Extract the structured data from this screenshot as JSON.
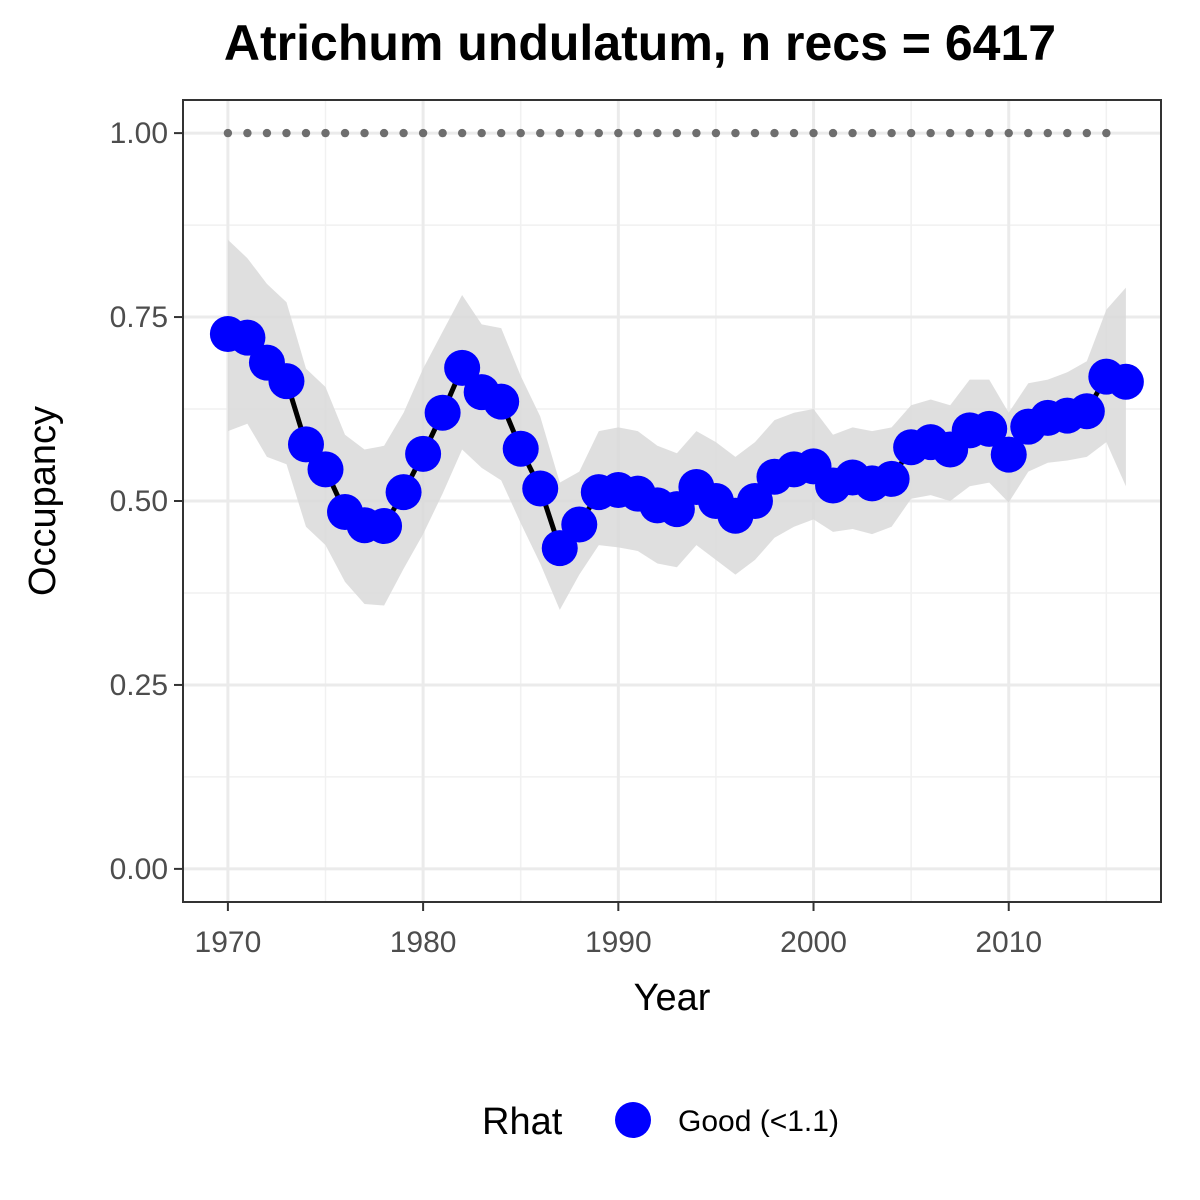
{
  "chart_data": {
    "type": "line",
    "title": "Atrichum undulatum, n recs = 6417",
    "xlabel": "Year",
    "ylabel": "Occupancy",
    "xlim": [
      1967.7,
      2017.8
    ],
    "ylim": [
      -0.045,
      1.045
    ],
    "x_ticks": [
      1970,
      1980,
      1990,
      2000,
      2010
    ],
    "x_tick_labels": [
      "1970",
      "1980",
      "1990",
      "2000",
      "2010"
    ],
    "y_ticks": [
      0,
      0.25,
      0.5,
      0.75,
      1.0
    ],
    "y_tick_labels": [
      "0.00",
      "0.25",
      "0.50",
      "0.75",
      "1.00"
    ],
    "grid": true,
    "legend": {
      "title": "Rhat",
      "position": "bottom",
      "entries": [
        {
          "label": "Good (<1.1)",
          "color": "#0000ff"
        }
      ]
    },
    "colors": {
      "points": "#0000ff",
      "line": "#000000",
      "ribbon": "#d9d9d9",
      "reference": "#6e6e6e"
    },
    "reference_line": {
      "y": 1.0,
      "x_start": 1970,
      "x_end": 2015,
      "style": "dotted"
    },
    "x": [
      1970,
      1971,
      1972,
      1973,
      1974,
      1975,
      1976,
      1977,
      1978,
      1979,
      1980,
      1981,
      1982,
      1983,
      1984,
      1985,
      1986,
      1987,
      1988,
      1989,
      1990,
      1991,
      1992,
      1993,
      1994,
      1995,
      1996,
      1997,
      1998,
      1999,
      2000,
      2001,
      2002,
      2003,
      2004,
      2005,
      2006,
      2007,
      2008,
      2009,
      2010,
      2011,
      2012,
      2013,
      2014,
      2015,
      2016
    ],
    "series": [
      {
        "values": [
          0.727,
          0.722,
          0.688,
          0.663,
          0.577,
          0.543,
          0.485,
          0.467,
          0.466,
          0.512,
          0.564,
          0.62,
          0.681,
          0.648,
          0.635,
          0.571,
          0.517,
          0.436,
          0.468,
          0.512,
          0.515,
          0.51,
          0.494,
          0.489,
          0.519,
          0.5,
          0.48,
          0.5,
          0.533,
          0.543,
          0.547,
          0.521,
          0.532,
          0.524,
          0.53,
          0.573,
          0.58,
          0.57,
          0.596,
          0.598,
          0.563,
          0.601,
          0.613,
          0.616,
          0.622,
          0.669,
          0.662
        ],
        "lower": [
          0.595,
          0.605,
          0.56,
          0.55,
          0.465,
          0.44,
          0.39,
          0.36,
          0.358,
          0.408,
          0.455,
          0.51,
          0.57,
          0.545,
          0.528,
          0.47,
          0.415,
          0.352,
          0.4,
          0.44,
          0.437,
          0.432,
          0.415,
          0.41,
          0.44,
          0.42,
          0.4,
          0.42,
          0.45,
          0.465,
          0.475,
          0.458,
          0.462,
          0.455,
          0.465,
          0.503,
          0.508,
          0.5,
          0.52,
          0.525,
          0.498,
          0.54,
          0.552,
          0.555,
          0.56,
          0.58,
          0.52
        ],
        "upper": [
          0.855,
          0.83,
          0.795,
          0.77,
          0.68,
          0.655,
          0.59,
          0.57,
          0.575,
          0.62,
          0.68,
          0.73,
          0.78,
          0.74,
          0.735,
          0.67,
          0.615,
          0.525,
          0.54,
          0.595,
          0.6,
          0.595,
          0.575,
          0.565,
          0.595,
          0.58,
          0.56,
          0.58,
          0.61,
          0.62,
          0.625,
          0.59,
          0.6,
          0.595,
          0.6,
          0.63,
          0.638,
          0.63,
          0.665,
          0.665,
          0.62,
          0.66,
          0.665,
          0.675,
          0.69,
          0.76,
          0.79
        ]
      }
    ]
  }
}
